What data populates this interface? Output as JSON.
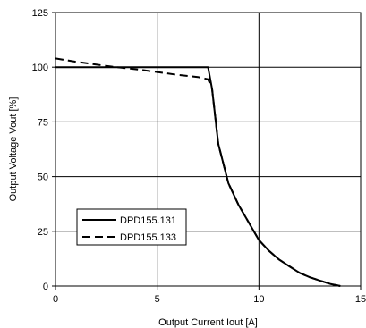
{
  "chart_data": {
    "type": "line",
    "xlabel": "Output Current Iout [A]",
    "ylabel": "Output Voltage Vout [%]",
    "xlim": [
      0,
      15
    ],
    "ylim": [
      0,
      125
    ],
    "x_ticks": [
      "0",
      "5",
      "10",
      "15"
    ],
    "y_ticks": [
      "0",
      "25",
      "50",
      "75",
      "100",
      "125"
    ],
    "grid": true,
    "legend_position": "lower-left",
    "series": [
      {
        "name": "DPD155.131",
        "style": "solid",
        "x": [
          0,
          7.5,
          7.7,
          8.0,
          8.5,
          9.0,
          9.5,
          10.0,
          10.5,
          11.0,
          11.5,
          12.0,
          12.5,
          13.0,
          13.5,
          14.0
        ],
        "y": [
          100,
          100,
          90,
          65,
          47,
          37,
          29,
          21,
          16,
          12,
          9,
          6,
          4,
          2.5,
          1,
          0
        ]
      },
      {
        "name": "DPD155.133",
        "style": "dashed",
        "x": [
          0,
          1,
          2,
          3,
          4,
          5,
          6,
          7,
          7.5,
          7.7,
          8.0,
          8.5,
          9.0,
          9.5,
          10.0,
          10.5,
          11.0,
          11.5,
          12.0,
          12.5,
          13.0,
          13.5,
          14.0
        ],
        "y": [
          104,
          102.5,
          101.2,
          100,
          99,
          97.8,
          96.5,
          95.5,
          94.5,
          90,
          65,
          47,
          37,
          29,
          21,
          16,
          12,
          9,
          6,
          4,
          2.5,
          1,
          0
        ]
      }
    ]
  }
}
